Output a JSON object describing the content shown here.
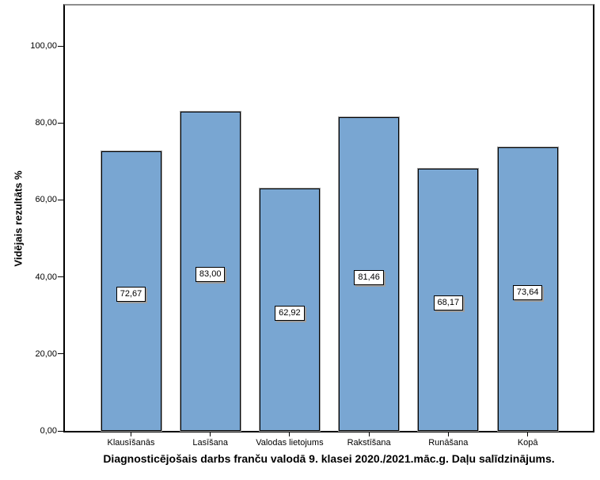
{
  "chart_data": {
    "type": "bar",
    "title": "Diagnosticējošais darbs franču valodā 9. klasei 2020./2021.māc.g. Daļu salīdzinājums.",
    "ylabel": "Vidējais rezultāts %",
    "xlabel": "",
    "categories": [
      "Klausīšanās",
      "Lasīšana",
      "Valodas lietojums",
      "Rakstīšana",
      "Runāšana",
      "Kopā"
    ],
    "values": [
      72.67,
      83.0,
      62.92,
      81.46,
      68.17,
      73.64
    ],
    "value_labels": [
      "72,67",
      "83,00",
      "62,92",
      "81,46",
      "68,17",
      "73,64"
    ],
    "ylim": [
      0,
      111
    ],
    "yticks": [
      0,
      20,
      40,
      60,
      80,
      100
    ],
    "ytick_labels": [
      "0,00",
      "20,00",
      "40,00",
      "60,00",
      "80,00",
      "100,00"
    ],
    "grid": false,
    "legend": "none",
    "colors": {
      "bar_fill": "#79a6d2",
      "bar_border": "#000000",
      "bar_shadow": "#9e9e9e",
      "frame": "#000000",
      "frame_top": "#8e8e8e",
      "text": "#000000",
      "value_box_bg": "#ffffff"
    }
  }
}
